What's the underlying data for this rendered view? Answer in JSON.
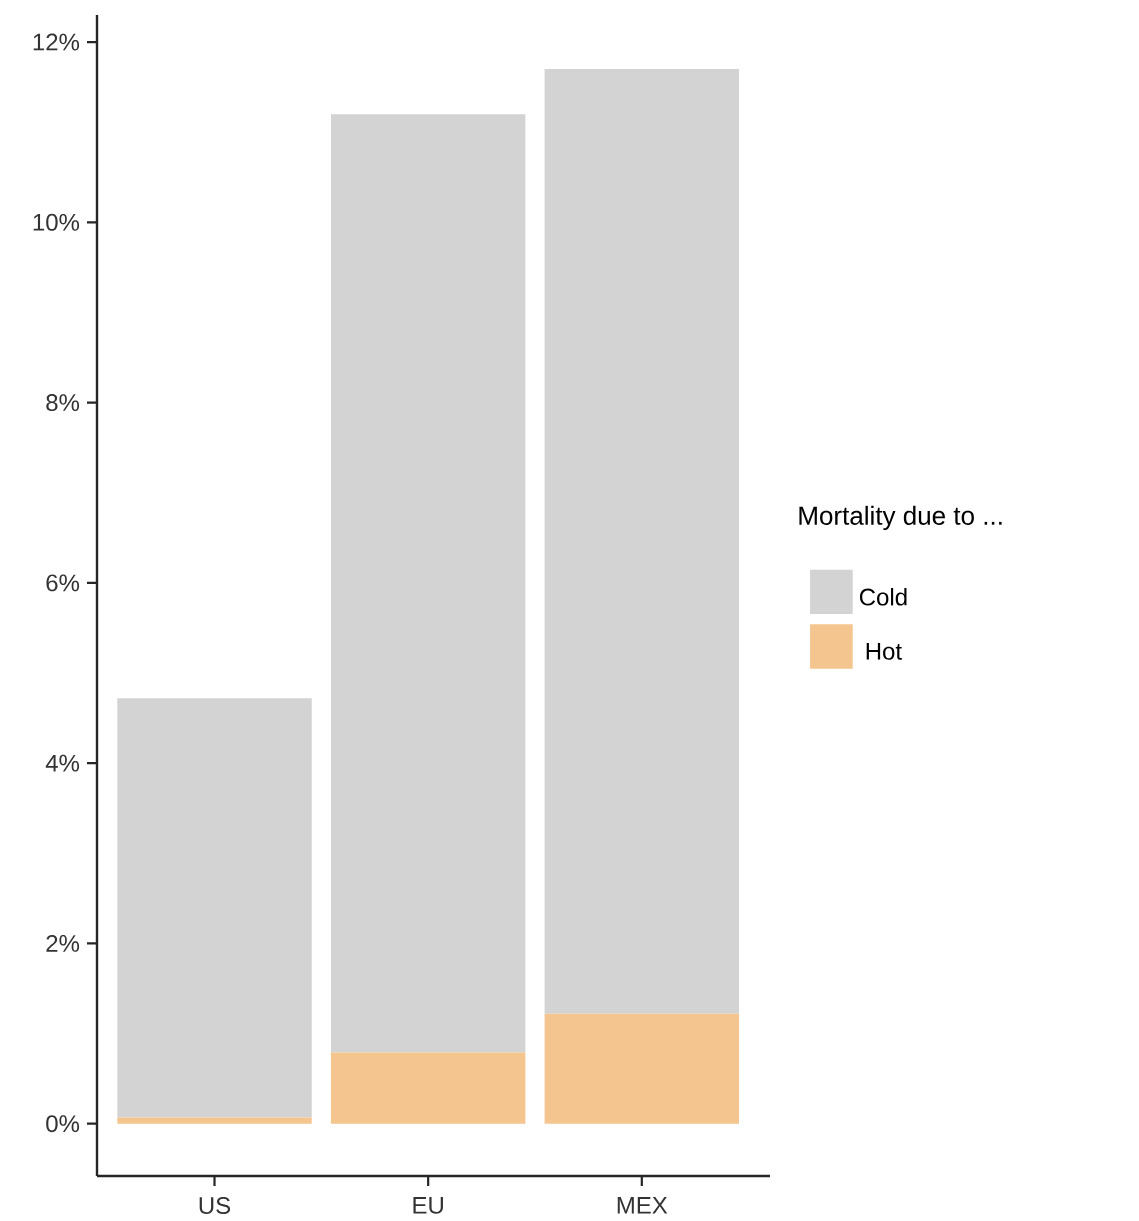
{
  "chart_data": {
    "type": "bar",
    "stacked": true,
    "legend_title": "Mortality due to ...",
    "categories": [
      "US",
      "EU",
      "MEX"
    ],
    "series": [
      {
        "name": "Hot",
        "color": "#f5c590",
        "values": [
          0.07,
          0.79,
          1.22
        ]
      },
      {
        "name": "Cold",
        "color": "#d3d3d3",
        "values": [
          4.65,
          10.41,
          10.48
        ]
      }
    ],
    "ylim": [
      -0.58,
      12.3
    ],
    "yticks": [
      {
        "value": 0,
        "label": "0%"
      },
      {
        "value": 2,
        "label": "2%"
      },
      {
        "value": 4,
        "label": "4%"
      },
      {
        "value": 6,
        "label": "6%"
      },
      {
        "value": 8,
        "label": "8%"
      },
      {
        "value": 10,
        "label": "10%"
      },
      {
        "value": 12,
        "label": "12%"
      }
    ],
    "legend": "right",
    "grid": false
  }
}
